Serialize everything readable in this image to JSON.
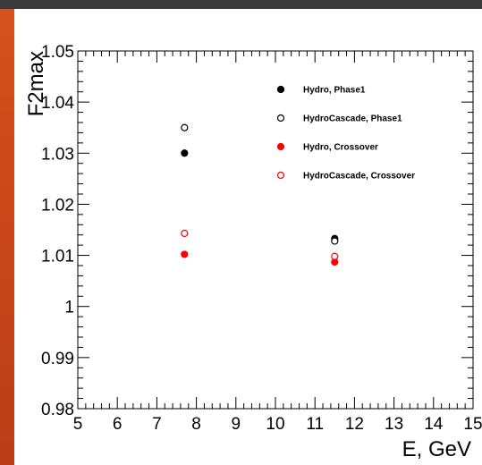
{
  "chart_data": {
    "type": "scatter",
    "title": "",
    "xlabel": "E, GeV",
    "ylabel": "F2max",
    "xlim": [
      5,
      15
    ],
    "ylim": [
      0.98,
      1.05
    ],
    "x_ticks": [
      "5",
      "6",
      "7",
      "8",
      "9",
      "10",
      "11",
      "12",
      "13",
      "14",
      "15"
    ],
    "y_ticks": [
      "0.98",
      "0.99",
      "1",
      "1.01",
      "1.02",
      "1.03",
      "1.04",
      "1.05"
    ],
    "grid": false,
    "legend_position": "top-right",
    "series": [
      {
        "name": "Hydro, Phase1",
        "color": "#000000",
        "filled": true,
        "points": [
          [
            7.7,
            1.03
          ],
          [
            11.5,
            1.0133
          ]
        ]
      },
      {
        "name": "HydroCascade, Phase1",
        "color": "#000000",
        "filled": false,
        "points": [
          [
            7.7,
            1.035
          ],
          [
            11.5,
            1.0128
          ]
        ]
      },
      {
        "name": "Hydro, Crossover",
        "color": "#ff0000",
        "filled": true,
        "points": [
          [
            7.7,
            1.0102
          ],
          [
            11.5,
            1.0087
          ]
        ]
      },
      {
        "name": "HydroCascade, Crossover",
        "color": "#ff0000",
        "filled": false,
        "points": [
          [
            7.7,
            1.0143
          ],
          [
            11.5,
            1.0098
          ]
        ]
      }
    ]
  }
}
